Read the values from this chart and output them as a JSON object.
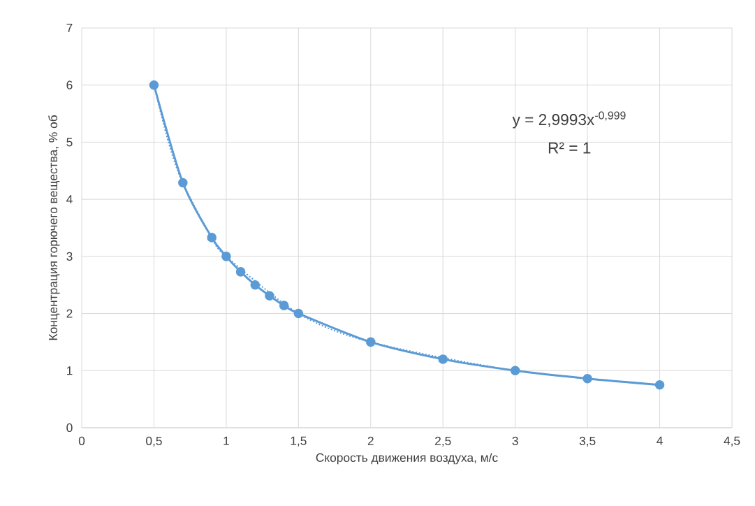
{
  "chart_data": {
    "type": "line",
    "xlabel": "Скорость движения воздуха, м/с",
    "ylabel": "Концентрация горючего вещества, % об",
    "annotations": [
      "y = 2,9993x$^{-0,999}$",
      "R² = 1"
    ],
    "series": [
      {
        "color": "#5b9bd5",
        "marker": "circle",
        "line_style": "solid",
        "x": [
          0.5,
          0.7,
          0.9,
          1,
          1.1,
          1.2,
          1.3,
          1.4,
          1.5,
          2,
          2.5,
          3,
          3.5,
          4
        ],
        "values": [
          6.0,
          4.29,
          3.33,
          3.0,
          2.73,
          2.5,
          2.31,
          2.14,
          2.0,
          1.5,
          1.2,
          1.0,
          0.86,
          0.75
        ]
      },
      {
        "type": "line",
        "color": "#5b9bd5",
        "marker": "none",
        "line_style": "dotted",
        "x": [
          0.5,
          0.6,
          0.7,
          0.9,
          1,
          1.5,
          2,
          3,
          4
        ],
        "values": [
          6.0,
          5.0,
          4.28,
          3.33,
          3.0,
          2.0,
          1.5,
          1.0,
          0.75
        ]
      }
    ],
    "xlim": [
      0,
      4.5
    ],
    "xticks": [
      0,
      {
        "value": 0.5,
        "label": "0,5"
      },
      1,
      {
        "value": 1.5,
        "label": "1,5"
      },
      2,
      {
        "value": 2.5,
        "label": "2,5"
      },
      3,
      {
        "value": 3.5,
        "label": "3,5"
      },
      4,
      {
        "value": 4.5,
        "label": "4,5"
      }
    ],
    "ylim": [
      0,
      7
    ],
    "yticks": [
      0,
      1,
      2,
      3,
      4,
      5,
      6,
      7
    ],
    "grid": true
  }
}
